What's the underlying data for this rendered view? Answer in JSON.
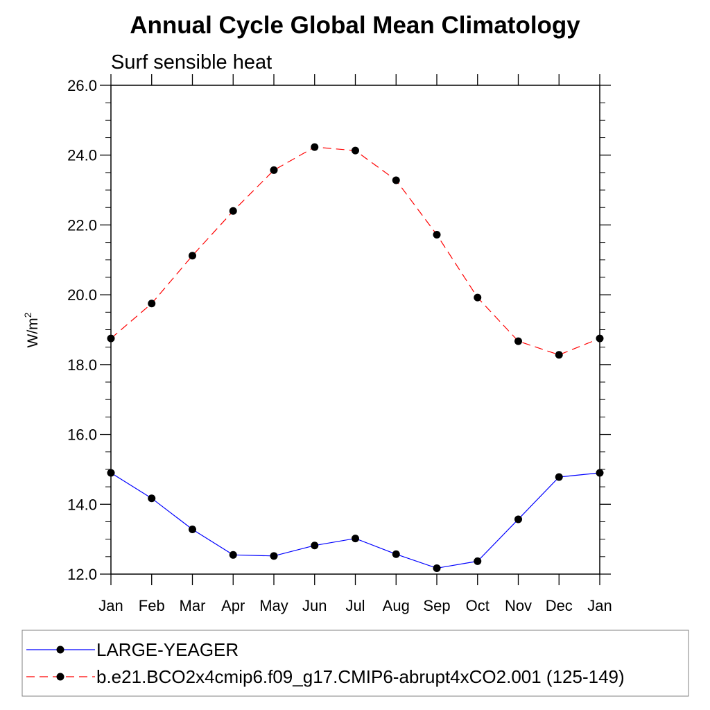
{
  "chart_data": {
    "type": "line",
    "title": "Annual Cycle Global Mean Climatology",
    "subtitle": "Surf sensible heat",
    "ylabel": "W/m",
    "ylabel_superscript": "2",
    "xlabel": "",
    "categories": [
      "Jan",
      "Feb",
      "Mar",
      "Apr",
      "May",
      "Jun",
      "Jul",
      "Aug",
      "Sep",
      "Oct",
      "Nov",
      "Dec",
      "Jan"
    ],
    "ylim": [
      12.0,
      26.0
    ],
    "yticks": [
      "12.0",
      "14.0",
      "16.0",
      "18.0",
      "20.0",
      "22.0",
      "24.0",
      "26.0"
    ],
    "y_minor_step": 0.5,
    "grid": false,
    "legend_position": "bottom",
    "series": [
      {
        "name": "LARGE-YEAGER",
        "color": "#0000ff",
        "line_style": "solid",
        "marker": "filled-circle",
        "values": [
          14.9,
          14.17,
          13.28,
          12.55,
          12.52,
          12.82,
          13.02,
          12.57,
          12.17,
          12.37,
          13.57,
          14.78,
          14.9
        ]
      },
      {
        "name": "b.e21.BCO2x4cmip6.f09_g17.CMIP6-abrupt4xCO2.001 (125-149)",
        "color": "#ff0000",
        "line_style": "dashed",
        "marker": "filled-circle",
        "values": [
          18.75,
          19.75,
          21.12,
          22.4,
          23.57,
          24.23,
          24.13,
          23.28,
          21.72,
          19.92,
          18.67,
          18.28,
          18.75
        ]
      }
    ]
  }
}
